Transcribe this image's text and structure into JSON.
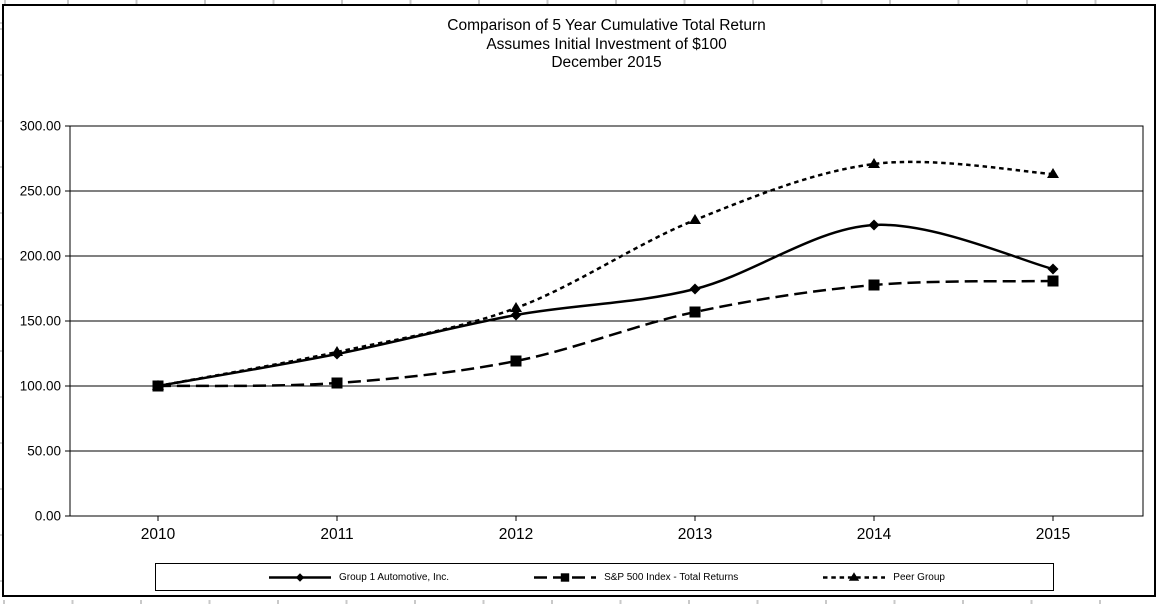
{
  "page": {
    "background": "#ffffff",
    "border_color": "#000000",
    "ink_color": "#000000"
  },
  "chart_data": {
    "type": "line",
    "title": "Comparison of 5 Year Cumulative Total Return",
    "subtitle1": "Assumes Initial Investment of $100",
    "subtitle2": "December 2015",
    "categories": [
      "2010",
      "2011",
      "2012",
      "2013",
      "2014",
      "2015"
    ],
    "series": [
      {
        "name": "Group 1 Automotive, Inc.",
        "marker": "diamond",
        "line_style": "solid",
        "values": [
          100,
          125,
          155,
          175,
          224,
          190
        ]
      },
      {
        "name": "S&P 500 Index - Total Returns",
        "marker": "square",
        "line_style": "long-dash",
        "values": [
          100,
          102,
          119,
          157,
          178,
          181
        ]
      },
      {
        "name": "Peer Group",
        "marker": "triangle",
        "line_style": "short-dash",
        "values": [
          100,
          126,
          160,
          228,
          271,
          263
        ]
      }
    ],
    "ylim": [
      0,
      300
    ],
    "y_tick_step": 50,
    "y_tick_labels": [
      "0.00",
      "50.00",
      "100.00",
      "150.00",
      "200.00",
      "250.00",
      "300.00"
    ],
    "xlabel": "",
    "ylabel": "",
    "grid": true,
    "legend_position": "bottom",
    "line_color": "#000000"
  }
}
